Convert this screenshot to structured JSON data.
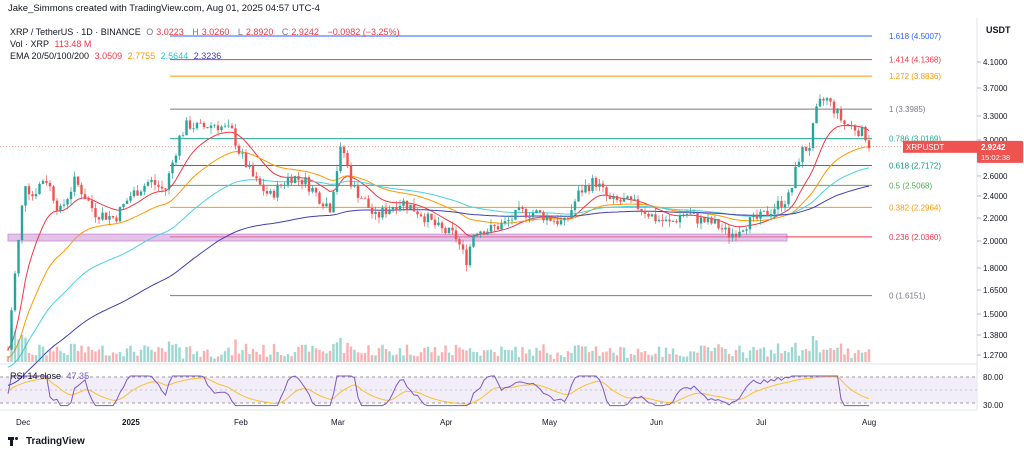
{
  "caption": "Jake_Simmons created with TradingView.com, Aug 01, 2025 04:57 UTC-4",
  "currency": "USDT",
  "logo_text": "TradingView",
  "legend": {
    "symbol": "XRP / TetherUS · 1D · BINANCE",
    "ohlc": [
      {
        "label": "O",
        "value": "3.0223"
      },
      {
        "label": "H",
        "value": "3.0260"
      },
      {
        "label": "L",
        "value": "2.8920"
      },
      {
        "label": "C",
        "value": "2.9242"
      }
    ],
    "change": "−0.0982 (−3.25%)",
    "vol_label": "Vol · XRP",
    "vol_value": "113.48 M",
    "ema_label": "EMA 20/50/100/200",
    "ema_values": [
      {
        "value": "3.0509",
        "color": "#f23645"
      },
      {
        "value": "2.7755",
        "color": "#ff9800"
      },
      {
        "value": "2.5644",
        "color": "#4dd0e1"
      },
      {
        "value": "2.3236",
        "color": "#3f3fb5"
      }
    ],
    "rsi_label": "RSI 14 close",
    "rsi_value": "47.35"
  },
  "chart_data": {
    "type": "candlestick",
    "symbol": "XRPUSDT",
    "last_price": "2.9242",
    "countdown": "15:02:38",
    "x_ticks": [
      "Dec",
      "2025",
      "Feb",
      "Mar",
      "Apr",
      "May",
      "Jun",
      "Jul",
      "Aug"
    ],
    "y_ticks": [
      "4.1000",
      "3.7000",
      "3.3000",
      "3.0000",
      "2.6000",
      "2.4000",
      "2.2000",
      "2.0000",
      "1.8000",
      "1.6500",
      "1.5000",
      "1.3800",
      "1.2700"
    ],
    "rsi_ticks": [
      "80.00",
      "30.00"
    ],
    "fib_levels": [
      {
        "label": "1.618 (4.5007)",
        "price": 4.5007,
        "color": "#2962ff"
      },
      {
        "label": "1.414 (4.1368)",
        "price": 4.1368,
        "color": "#f23645"
      },
      {
        "label": "1.272 (3.8836)",
        "price": 3.8836,
        "color": "#ff9800"
      },
      {
        "label": "1 (3.3985)",
        "price": 3.3985,
        "color": "#787b86"
      },
      {
        "label": "0.786 (3.0169)",
        "price": 3.0169,
        "color": "#22ab94"
      },
      {
        "label": "0.618 (2.7172)",
        "price": 2.7172,
        "color": "#089981"
      },
      {
        "label": "0.5 (2.5068)",
        "price": 2.5068,
        "color": "#4caf50"
      },
      {
        "label": "0.382 (2.2964)",
        "price": 2.2964,
        "color": "#ff9800"
      },
      {
        "label": "0.236 (2.0360)",
        "price": 2.036,
        "color": "#f23645"
      },
      {
        "label": "0 (1.6151)",
        "price": 1.6151,
        "color": "#787b86"
      }
    ],
    "colors": {
      "up": "#26a69a",
      "down": "#ef5350",
      "support_zone": "#ce93d8",
      "rsi_band": "#ede7f6",
      "rsi_line": "#7e57c2",
      "rsi_ma": "#fbc02d"
    }
  }
}
